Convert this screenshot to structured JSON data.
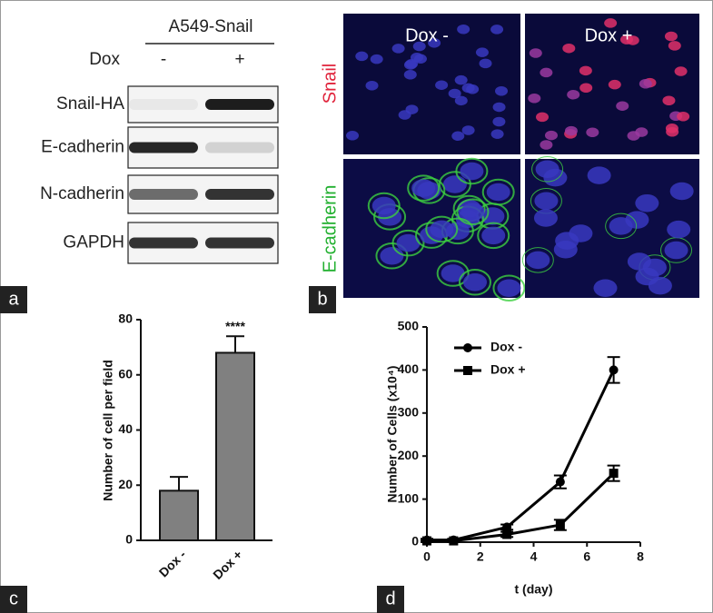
{
  "panel_labels": [
    "a",
    "b",
    "c",
    "d"
  ],
  "blot": {
    "title": "A549-Snail",
    "treatment": "Dox",
    "conditions": [
      "-",
      "+"
    ],
    "proteins": [
      "Snail-HA",
      "E-cadherin",
      "N-cadherin",
      "GAPDH"
    ]
  },
  "microscopy": {
    "conditions": [
      "Dox -",
      "Dox +"
    ],
    "stains": [
      "Snail",
      "E-cadherin"
    ]
  },
  "chart_data": [
    {
      "type": "bar",
      "categories": [
        "Dox -",
        "Dox +"
      ],
      "values": [
        18,
        68
      ],
      "errors": [
        5,
        6
      ],
      "color": "#808080",
      "y_label": "Number of  cell per field",
      "annotation": "****",
      "ylim": [
        0,
        80
      ],
      "yticks": [
        0,
        20,
        40,
        60,
        80
      ]
    },
    {
      "type": "line",
      "x": [
        0,
        1,
        3,
        5,
        7
      ],
      "x_label": "t (day)",
      "y_label": "Number of Cells (x10⁴)",
      "series": [
        {
          "name": "Dox -",
          "color": "#000000",
          "marker": "circle",
          "values": [
            5,
            5,
            35,
            140,
            400
          ],
          "errors": [
            3,
            3,
            6,
            15,
            30
          ]
        },
        {
          "name": "Dox +",
          "color": "#000000",
          "marker": "square",
          "values": [
            3,
            3,
            18,
            40,
            160
          ],
          "errors": [
            3,
            3,
            6,
            12,
            18
          ]
        }
      ],
      "xlim": [
        0,
        8
      ],
      "xticks": [
        0,
        2,
        4,
        6,
        8
      ],
      "ylim": [
        0,
        500
      ],
      "yticks": [
        0,
        100,
        200,
        300,
        400,
        500
      ],
      "legend": "top-left"
    }
  ]
}
